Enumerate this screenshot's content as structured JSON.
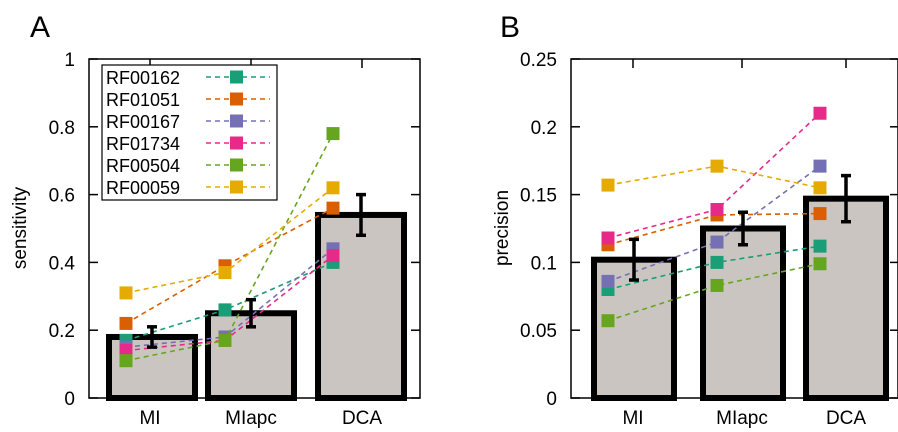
{
  "chart_data": [
    {
      "type": "bar",
      "panel_label": "A",
      "title": "",
      "xlabel": "",
      "ylabel": "sensitivity",
      "ylim": [
        0,
        1
      ],
      "yticks": [
        "0",
        "0.2",
        "0.4",
        "0.6",
        "0.8",
        "1"
      ],
      "ytick_values": [
        0,
        0.2,
        0.4,
        0.6,
        0.8,
        1.0
      ],
      "categories": [
        "MI",
        "MIapc",
        "DCA"
      ],
      "bars": {
        "values": [
          0.18,
          0.25,
          0.54
        ],
        "errors": [
          0.03,
          0.04,
          0.06
        ],
        "color": "#cbc5c1"
      },
      "series": [
        {
          "name": "RF00162",
          "color": "#1a9e77",
          "values": [
            0.17,
            0.26,
            0.4
          ]
        },
        {
          "name": "RF01051",
          "color": "#d95f02",
          "values": [
            0.22,
            0.39,
            0.56
          ]
        },
        {
          "name": "RF00167",
          "color": "#7570b3",
          "values": [
            0.15,
            0.18,
            0.44
          ]
        },
        {
          "name": "RF01734",
          "color": "#e7298a",
          "values": [
            0.14,
            0.17,
            0.42
          ]
        },
        {
          "name": "RF00504",
          "color": "#66a61e",
          "values": [
            0.11,
            0.17,
            0.78
          ]
        },
        {
          "name": "RF00059",
          "color": "#e6ab02",
          "values": [
            0.31,
            0.37,
            0.62
          ]
        }
      ],
      "legend_position": "top-left"
    },
    {
      "type": "bar",
      "panel_label": "B",
      "title": "",
      "xlabel": "",
      "ylabel": "precision",
      "ylim": [
        0,
        0.25
      ],
      "yticks": [
        "0",
        "0.05",
        "0.1",
        "0.15",
        "0.2",
        "0.25"
      ],
      "ytick_values": [
        0,
        0.05,
        0.1,
        0.15,
        0.2,
        0.25
      ],
      "categories": [
        "MI",
        "MIapc",
        "DCA"
      ],
      "bars": {
        "values": [
          0.102,
          0.125,
          0.147
        ],
        "errors": [
          0.015,
          0.012,
          0.017
        ],
        "color": "#cbc5c1"
      },
      "series": [
        {
          "name": "RF00162",
          "color": "#1a9e77",
          "values": [
            0.08,
            0.1,
            0.112
          ]
        },
        {
          "name": "RF01051",
          "color": "#d95f02",
          "values": [
            0.113,
            0.135,
            0.136
          ]
        },
        {
          "name": "RF00167",
          "color": "#7570b3",
          "values": [
            0.086,
            0.115,
            0.171
          ]
        },
        {
          "name": "RF01734",
          "color": "#e7298a",
          "values": [
            0.118,
            0.139,
            0.21
          ]
        },
        {
          "name": "RF00504",
          "color": "#66a61e",
          "values": [
            0.057,
            0.083,
            0.099
          ]
        },
        {
          "name": "RF00059",
          "color": "#e6ab02",
          "values": [
            0.157,
            0.171,
            0.155
          ]
        }
      ],
      "legend_position": "none"
    }
  ]
}
